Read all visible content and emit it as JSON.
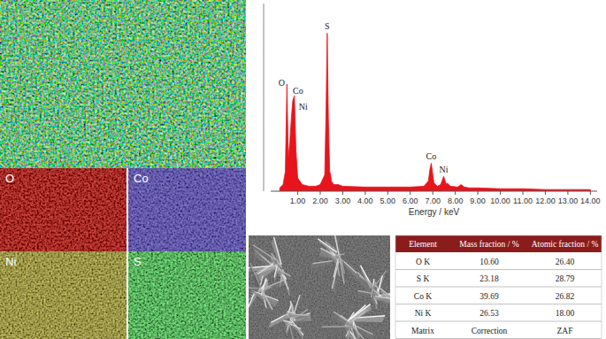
{
  "chart_data": {
    "type": "area",
    "x_label": "Energy / keV",
    "x": [
      0.2,
      0.35,
      0.45,
      0.52,
      0.58,
      0.65,
      0.72,
      0.78,
      0.85,
      0.92,
      1.0,
      1.2,
      1.5,
      1.8,
      2.0,
      2.2,
      2.26,
      2.31,
      2.36,
      2.42,
      2.46,
      2.5,
      2.6,
      2.8,
      3.0,
      4.0,
      5.0,
      6.0,
      6.6,
      6.8,
      6.88,
      6.93,
      6.98,
      7.05,
      7.2,
      7.35,
      7.43,
      7.48,
      7.53,
      7.6,
      7.65,
      7.7,
      7.8,
      8.1,
      8.26,
      8.4,
      8.6,
      9.0,
      10.0,
      11.0,
      12.0,
      13.0,
      14.0
    ],
    "values": [
      2,
      4,
      12,
      65,
      20,
      30,
      45,
      55,
      58,
      25,
      8,
      4,
      3,
      3,
      4,
      10,
      50,
      96,
      45,
      12,
      10,
      6,
      4,
      4,
      3,
      2.5,
      2.5,
      2.5,
      3,
      6,
      14,
      17,
      12,
      5,
      3,
      4,
      7,
      9,
      7,
      4,
      5,
      4,
      3,
      2.5,
      4,
      2.5,
      2,
      2,
      1.5,
      1.5,
      1,
      1,
      1
    ],
    "color": "#e8141c",
    "xlim": [
      -0.2,
      14.3
    ],
    "ylim": [
      0,
      100
    ],
    "xticks": [
      {
        "value": 1,
        "label": "1.00"
      },
      {
        "value": 2,
        "label": "2.00"
      },
      {
        "value": 3,
        "label": "3.00"
      },
      {
        "value": 4,
        "label": "4.00"
      },
      {
        "value": 5,
        "label": "5.00"
      },
      {
        "value": 6,
        "label": "6.00"
      },
      {
        "value": 7,
        "label": "7.00"
      },
      {
        "value": 8,
        "label": "8.00"
      },
      {
        "value": 9,
        "label": "9.00"
      },
      {
        "value": 10,
        "label": "10.00"
      },
      {
        "value": 11,
        "label": "11.00"
      },
      {
        "value": 12,
        "label": "12.00"
      },
      {
        "value": 13,
        "label": "13.00"
      },
      {
        "value": 14,
        "label": "14.00"
      }
    ],
    "tick_labels": "x",
    "annotations": [
      {
        "text": "O",
        "x": 0.52
      },
      {
        "text": "Co",
        "x": 0.78
      },
      {
        "text": "Ni",
        "x": 0.85
      },
      {
        "text": "S",
        "x": 2.31
      },
      {
        "text": "Co",
        "x": 6.93
      },
      {
        "text": "Ni",
        "x": 7.48
      }
    ]
  },
  "maps": {
    "labels": [
      "O",
      "Co",
      "Ni",
      "S"
    ]
  },
  "table": {
    "header": [
      "Element",
      "Mass fraction / %",
      "Atomic fraction / %"
    ],
    "rows": [
      [
        "O K",
        "10.60",
        "26.40"
      ],
      [
        "S K",
        "23.18",
        "28.79"
      ],
      [
        "Co K",
        "39.69",
        "26.82"
      ],
      [
        "Ni K",
        "26.53",
        "18.00"
      ],
      [
        "Matrix",
        "Correction",
        "ZAF"
      ]
    ]
  }
}
